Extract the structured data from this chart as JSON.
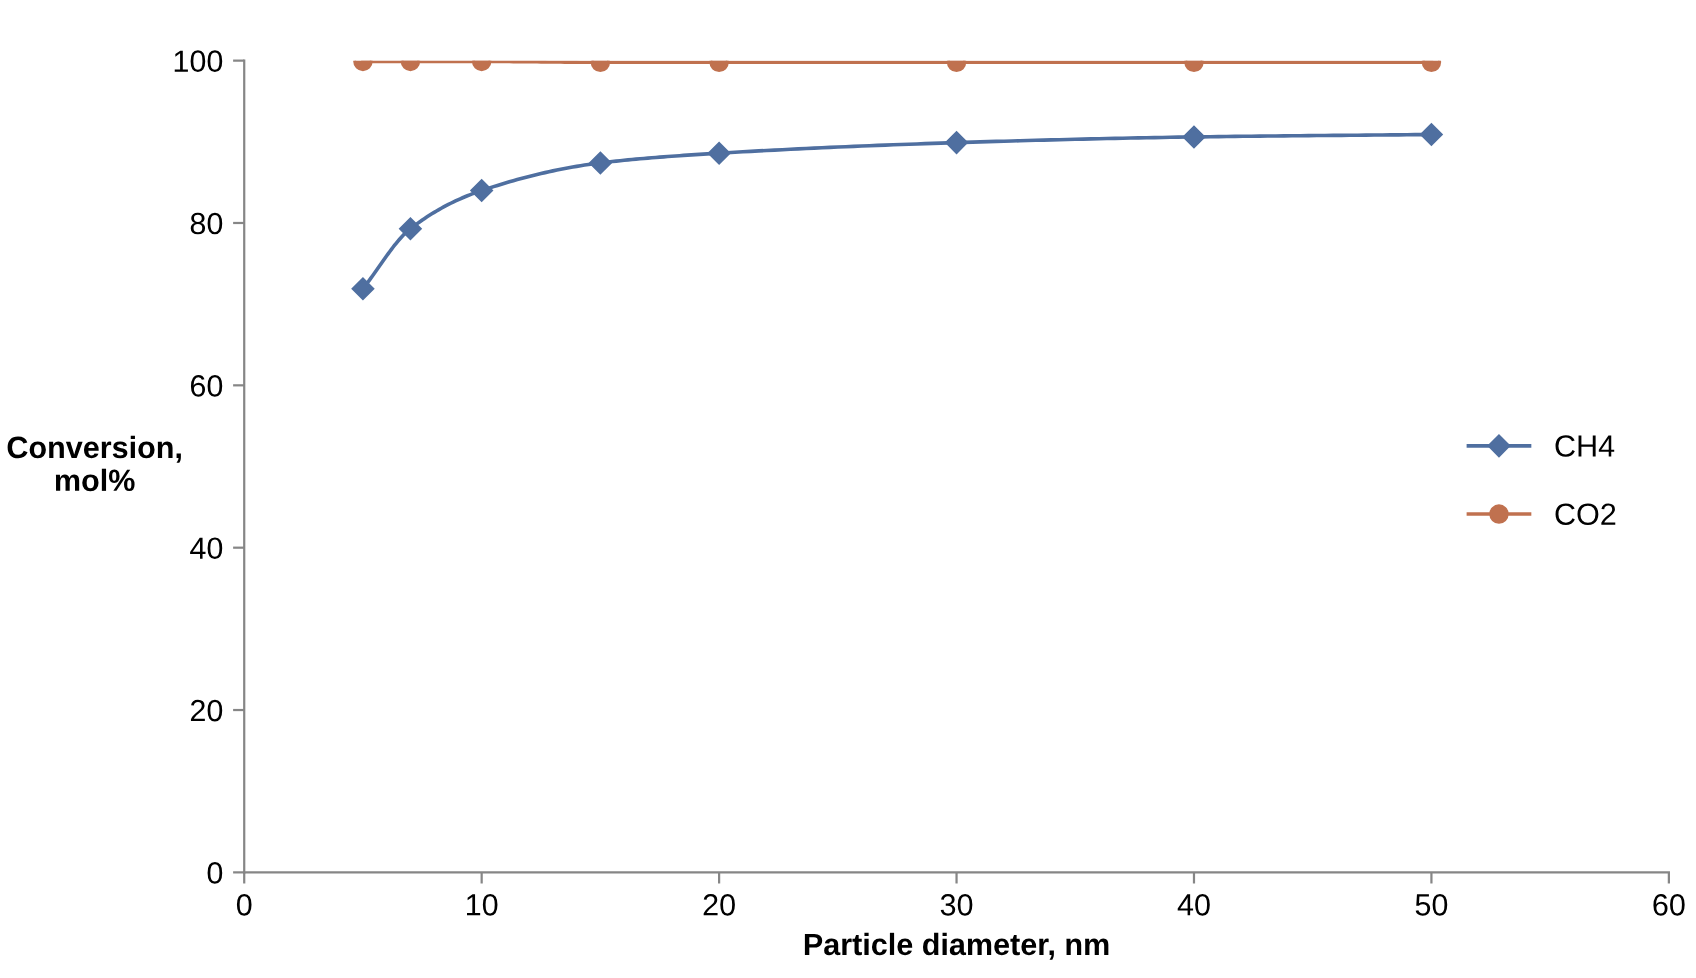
{
  "chart_data": {
    "type": "line",
    "xlabel": "Particle diameter, nm",
    "ylabel": "Conversion,\nmol%",
    "xlim": [
      0,
      60
    ],
    "xticks": [
      0,
      10,
      20,
      30,
      40,
      50,
      60
    ],
    "ylim": [
      0,
      100
    ],
    "yticks": [
      0,
      20,
      40,
      60,
      80,
      100
    ],
    "x": [
      5,
      7,
      10,
      15,
      20,
      30,
      40,
      50
    ],
    "series": [
      {
        "name": "CH4",
        "color": "#4f6fa0",
        "marker": "diamond",
        "values": [
          71.9,
          79.3,
          84.0,
          87.4,
          88.6,
          89.9,
          90.6,
          90.9
        ]
      },
      {
        "name": "CO2",
        "color": "#c0714f",
        "marker": "circle",
        "values": [
          99.9,
          99.9,
          99.9,
          99.8,
          99.8,
          99.8,
          99.8,
          99.8
        ]
      }
    ],
    "grid": false,
    "legend": "right",
    "line_style": "solid"
  }
}
